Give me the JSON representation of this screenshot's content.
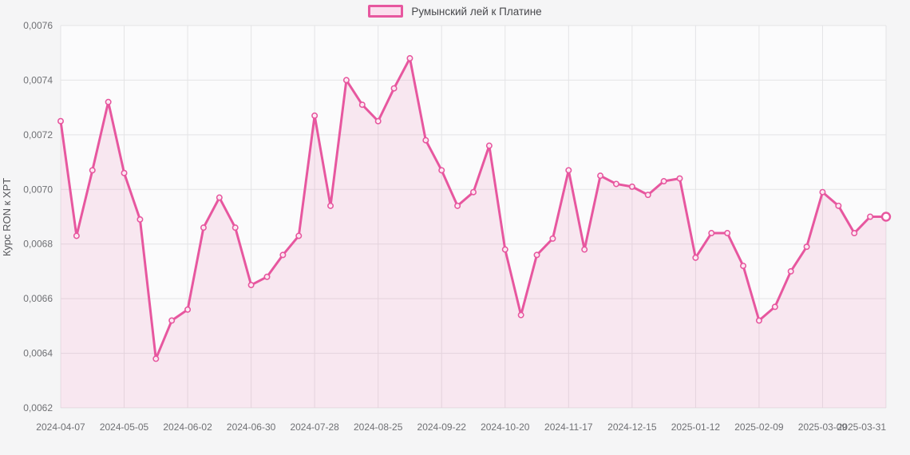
{
  "legend": {
    "label": "Румынский лей к Платине",
    "swatch_border": "#e7579f",
    "swatch_fill": "#fbdfee"
  },
  "chart_data": {
    "type": "line",
    "title": "",
    "xlabel": "",
    "ylabel": "Курс RON к XPT",
    "series_name": "Румынский лей к Платине",
    "legend_position": "top",
    "grid": true,
    "line_color": "#e7579f",
    "fill_color": "rgba(231,87,159,0.12)",
    "grid_color": "#e4e4e6",
    "plot_bg": "#fbfbfc",
    "tick_color": "#6f7074",
    "ylim": [
      0.0062,
      0.0076
    ],
    "y_ticks": [
      {
        "value": 0.0076,
        "label": "0,0076"
      },
      {
        "value": 0.0074,
        "label": "0,0074"
      },
      {
        "value": 0.0072,
        "label": "0,0072"
      },
      {
        "value": 0.007,
        "label": "0,0070"
      },
      {
        "value": 0.0068,
        "label": "0,0068"
      },
      {
        "value": 0.0066,
        "label": "0,0066"
      },
      {
        "value": 0.0064,
        "label": "0,0064"
      },
      {
        "value": 0.0062,
        "label": "0,0062"
      }
    ],
    "x_tick_labels": [
      "2024-04-07",
      "2024-05-05",
      "2024-06-02",
      "2024-06-30",
      "2024-07-28",
      "2024-08-25",
      "2024-09-22",
      "2024-10-20",
      "2024-11-17",
      "2024-12-15",
      "2025-01-12",
      "2025-02-09",
      "2025-03-09",
      "2025-03-31"
    ],
    "x_tick_indices": [
      0,
      4,
      8,
      12,
      16,
      20,
      24,
      28,
      32,
      36,
      40,
      44,
      48,
      52
    ],
    "x": [
      "2024-04-07",
      "2024-04-14",
      "2024-04-21",
      "2024-04-28",
      "2024-05-05",
      "2024-05-12",
      "2024-05-19",
      "2024-05-26",
      "2024-06-02",
      "2024-06-09",
      "2024-06-16",
      "2024-06-23",
      "2024-06-30",
      "2024-07-07",
      "2024-07-14",
      "2024-07-21",
      "2024-07-28",
      "2024-08-04",
      "2024-08-11",
      "2024-08-18",
      "2024-08-25",
      "2024-09-01",
      "2024-09-08",
      "2024-09-15",
      "2024-09-22",
      "2024-09-29",
      "2024-10-06",
      "2024-10-13",
      "2024-10-20",
      "2024-10-27",
      "2024-11-03",
      "2024-11-10",
      "2024-11-17",
      "2024-11-24",
      "2024-12-01",
      "2024-12-08",
      "2024-12-15",
      "2024-12-22",
      "2024-12-29",
      "2025-01-05",
      "2025-01-12",
      "2025-01-19",
      "2025-01-26",
      "2025-02-02",
      "2025-02-09",
      "2025-02-16",
      "2025-02-23",
      "2025-03-02",
      "2025-03-09",
      "2025-03-16",
      "2025-03-23",
      "2025-03-30",
      "2025-03-31"
    ],
    "values": [
      0.00725,
      0.00683,
      0.00707,
      0.00732,
      0.00706,
      0.00689,
      0.00638,
      0.00652,
      0.00656,
      0.00686,
      0.00697,
      0.00686,
      0.00665,
      0.00668,
      0.00676,
      0.00683,
      0.00727,
      0.00694,
      0.0074,
      0.00731,
      0.00725,
      0.00737,
      0.00748,
      0.00718,
      0.00707,
      0.00694,
      0.00699,
      0.00716,
      0.00678,
      0.00654,
      0.00676,
      0.00682,
      0.00707,
      0.00678,
      0.00705,
      0.00702,
      0.00701,
      0.00698,
      0.00703,
      0.00704,
      0.00675,
      0.00684,
      0.00684,
      0.00672,
      0.00652,
      0.00657,
      0.0067,
      0.00679,
      0.00699,
      0.00694,
      0.00684,
      0.0069,
      0.0069
    ]
  }
}
